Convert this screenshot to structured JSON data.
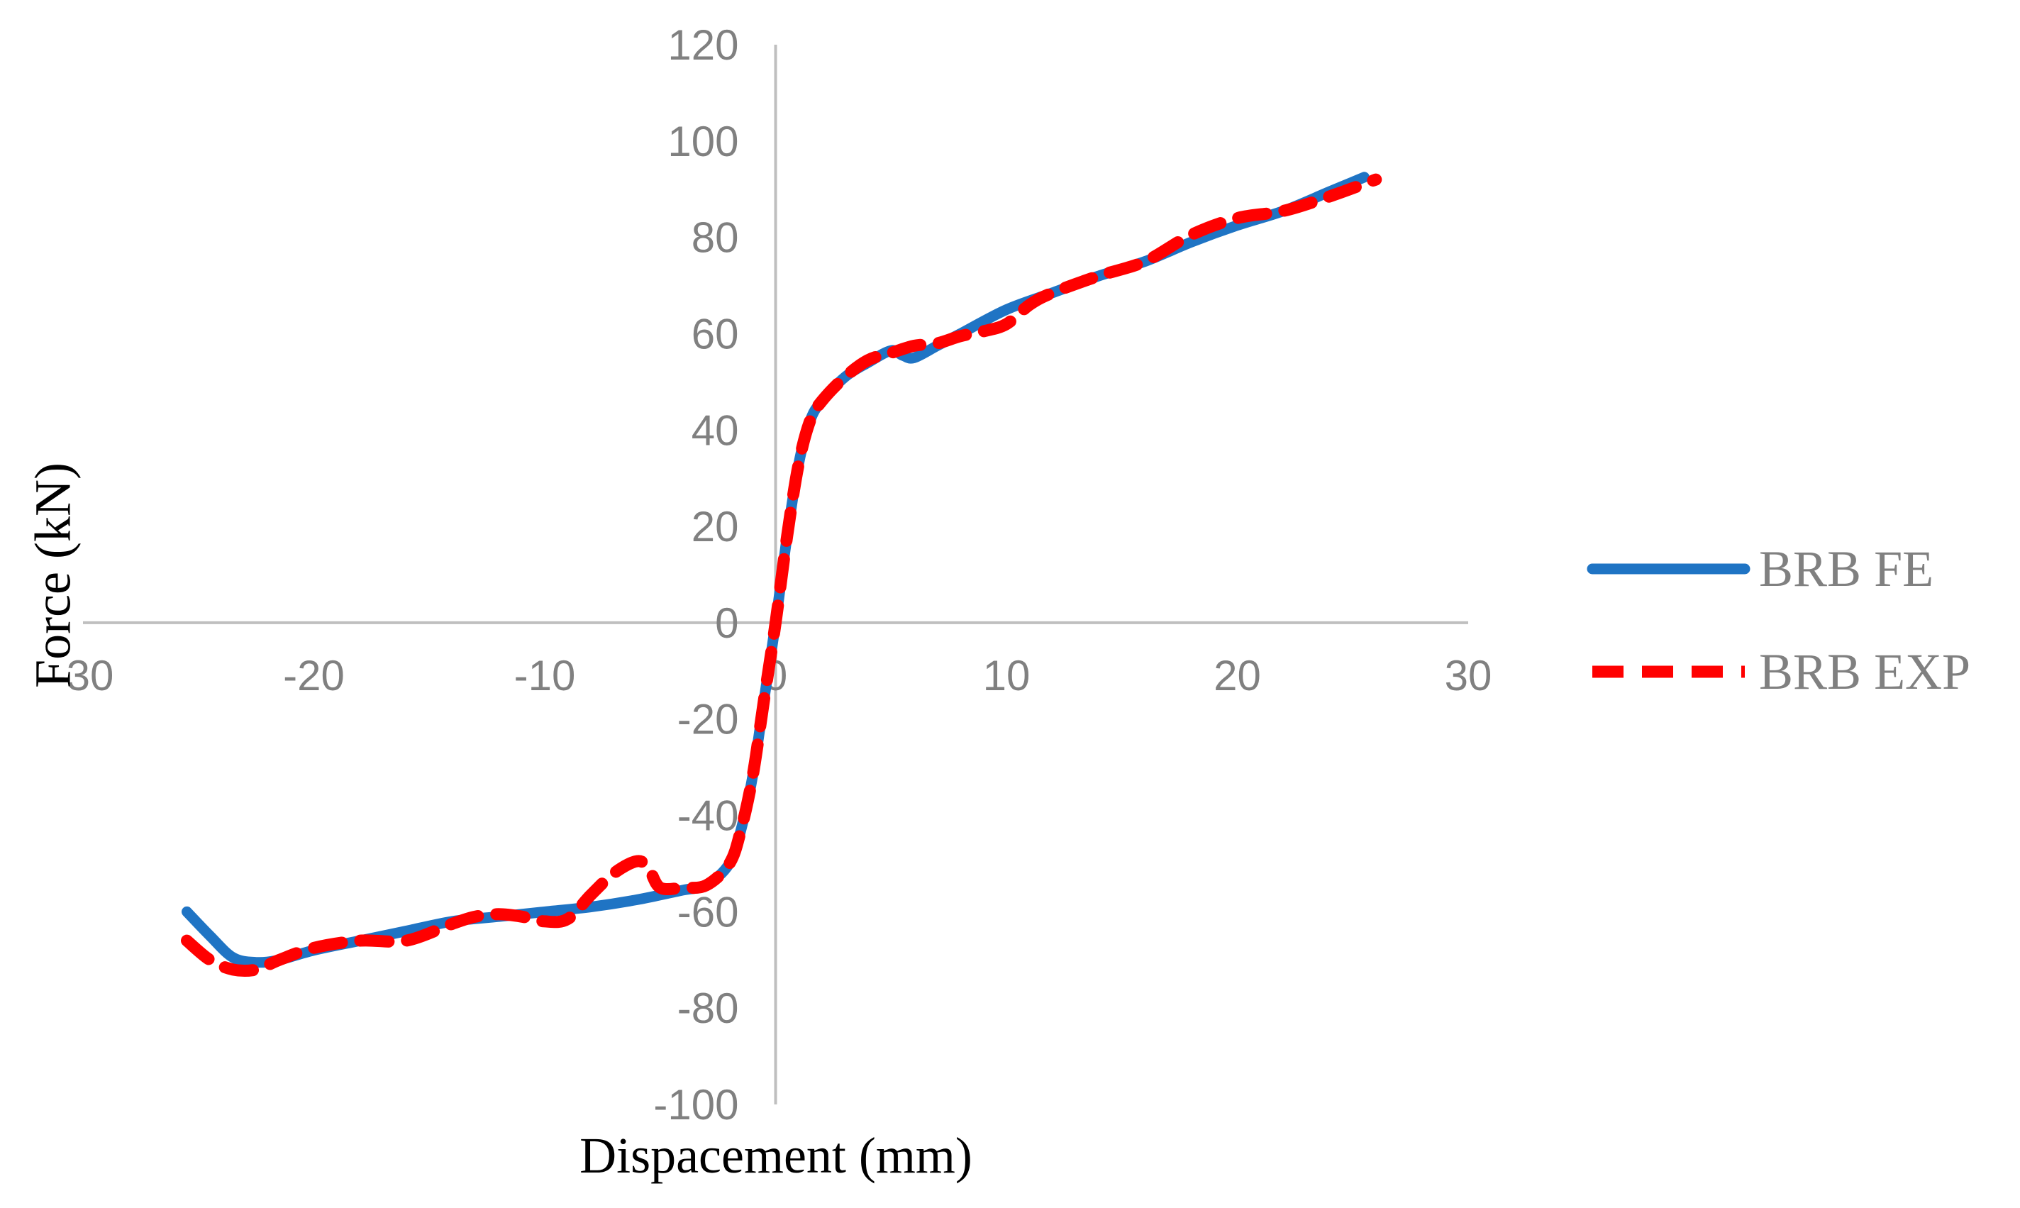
{
  "chart_data": {
    "type": "line",
    "title": "",
    "xlabel": "Dispacement (mm)",
    "ylabel": "Force (kN)",
    "xlim": [
      -30,
      30
    ],
    "ylim": [
      -100,
      120
    ],
    "x_ticks": [
      -30,
      -20,
      -10,
      0,
      10,
      20,
      30
    ],
    "y_ticks": [
      -100,
      -80,
      -60,
      -40,
      -20,
      0,
      20,
      40,
      60,
      80,
      100,
      120
    ],
    "grid": false,
    "legend_position": "right",
    "series": [
      {
        "name": "BRB FE",
        "color": "#1f74c4",
        "style": "solid",
        "x": [
          -25.5,
          -24.5,
          -23.5,
          -22.5,
          -21.5,
          -20,
          -18,
          -16,
          -14,
          -12,
          -10,
          -8,
          -6,
          -4,
          -3,
          -2,
          -1.5,
          -1,
          -0.5,
          0,
          0.5,
          1,
          1.5,
          2,
          3,
          4,
          5,
          5.5,
          6,
          7,
          8,
          10,
          12,
          14,
          16,
          18,
          20,
          22,
          24,
          25.5
        ],
        "y": [
          -60,
          -65,
          -69.5,
          -70.5,
          -70,
          -68,
          -66,
          -64,
          -62,
          -61,
          -60,
          -59,
          -57.5,
          -55.5,
          -54.5,
          -50,
          -43,
          -32,
          -16,
          0,
          18,
          33,
          42,
          46,
          51,
          54,
          56.5,
          55.5,
          55,
          57.5,
          60,
          65,
          68.5,
          72,
          75,
          79,
          82.5,
          85.5,
          89.5,
          92.5
        ]
      },
      {
        "name": "BRB EXP",
        "color": "#ff0000",
        "style": "dashed",
        "x": [
          -25.5,
          -24.5,
          -23.5,
          -22.5,
          -21.5,
          -20,
          -18,
          -16,
          -14,
          -13,
          -12,
          -11,
          -10,
          -9,
          -8,
          -7,
          -6,
          -5.5,
          -5,
          -4,
          -3,
          -2,
          -1.5,
          -1,
          -0.5,
          0,
          0.5,
          1,
          1.5,
          2,
          3,
          4,
          5,
          6,
          7,
          8,
          9,
          10,
          11,
          12,
          14,
          16,
          18,
          20,
          22,
          24,
          26
        ],
        "y": [
          -66,
          -70,
          -72,
          -72,
          -70,
          -67.5,
          -66,
          -66,
          -62.5,
          -61,
          -60.5,
          -61,
          -62,
          -61.5,
          -56.5,
          -52,
          -49.5,
          -51,
          -55,
          -55,
          -54.5,
          -50,
          -43,
          -32,
          -16,
          0,
          18,
          33,
          42,
          46,
          51,
          54.5,
          56,
          57.5,
          58,
          59.5,
          60.5,
          62,
          66,
          68.5,
          72,
          75,
          80.5,
          84,
          85.5,
          88.5,
          92
        ]
      }
    ]
  }
}
